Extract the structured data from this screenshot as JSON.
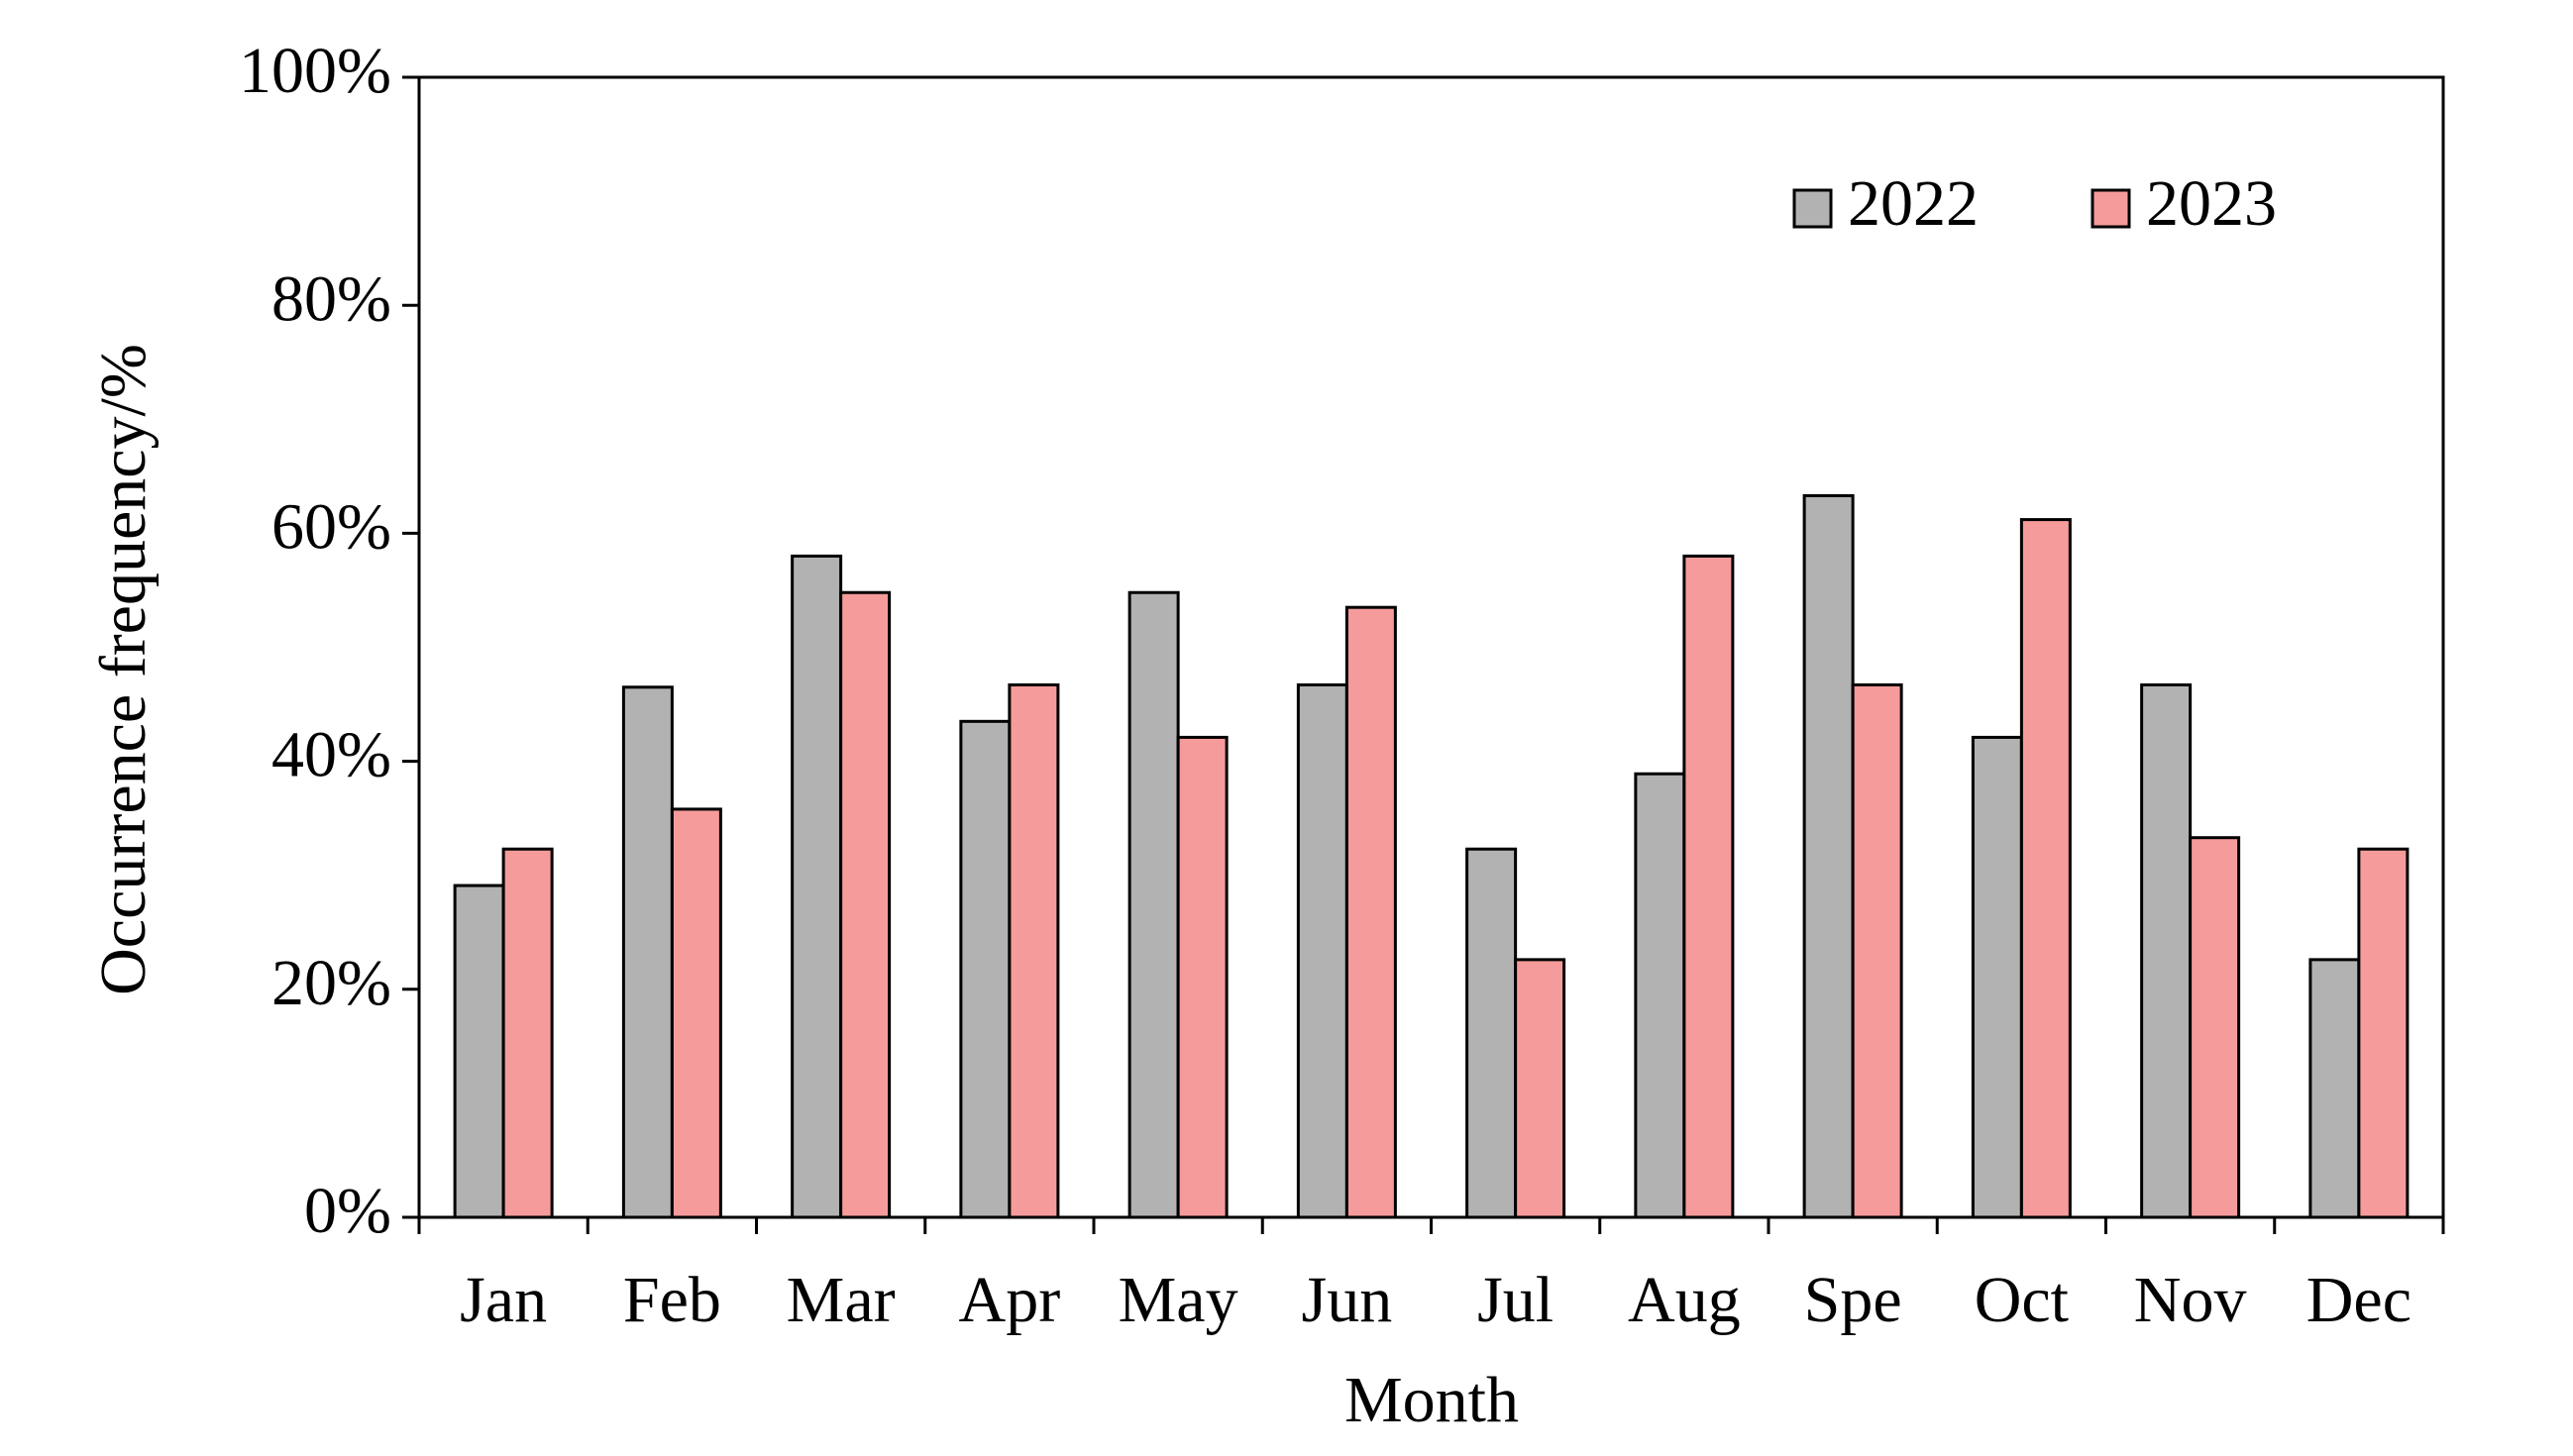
{
  "chart_data": {
    "type": "bar",
    "x_label": "Month",
    "y_label": "Occurrence  frequency/%",
    "categories": [
      "Jan",
      "Feb",
      "Mar",
      "Apr",
      "May",
      "Jun",
      "Jul",
      "Aug",
      "Spe",
      "Oct",
      "Nov",
      "Dec"
    ],
    "series": [
      {
        "name": "2022",
        "color": "#b2b2b2",
        "values": [
          29.1,
          46.5,
          58.0,
          43.5,
          54.8,
          46.7,
          32.3,
          38.9,
          63.3,
          42.1,
          46.7,
          22.6
        ]
      },
      {
        "name": "2023",
        "color": "#f69b9b",
        "values": [
          32.3,
          35.8,
          54.8,
          46.7,
          42.1,
          53.5,
          22.6,
          58.0,
          46.7,
          61.2,
          33.3,
          32.3
        ]
      }
    ],
    "ylim": [
      0,
      100
    ],
    "yticks": [
      {
        "value": 0,
        "label": "0%"
      },
      {
        "value": 20,
        "label": "20%"
      },
      {
        "value": 40,
        "label": "40%"
      },
      {
        "value": 60,
        "label": "60%"
      },
      {
        "value": 80,
        "label": "80%"
      },
      {
        "value": 100,
        "label": "100%"
      }
    ],
    "grid": false,
    "legend": "top-right"
  }
}
